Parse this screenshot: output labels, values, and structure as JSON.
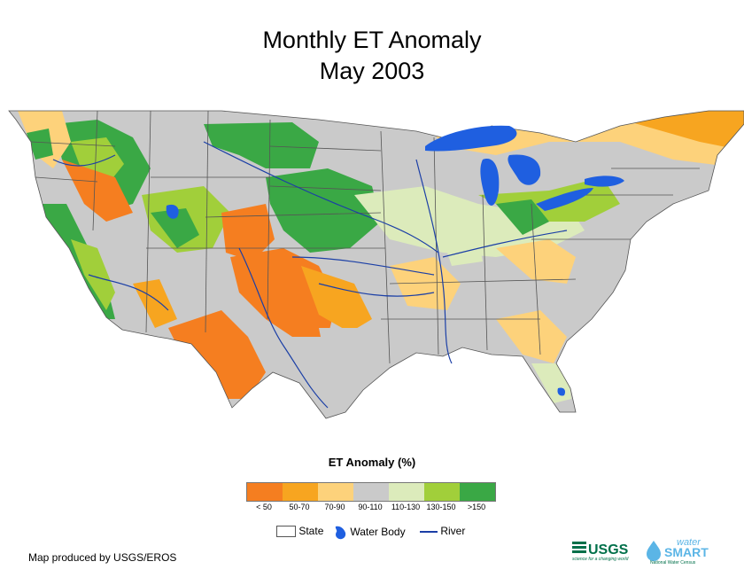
{
  "title": "Monthly ET Anomaly",
  "subtitle": "May 2003",
  "legend": {
    "title": "ET Anomaly (%)",
    "classes": [
      {
        "label": "< 50",
        "color": "#f57e20"
      },
      {
        "label": "50-70",
        "color": "#f7a520"
      },
      {
        "label": "70-90",
        "color": "#fdd27b"
      },
      {
        "label": "90-110",
        "color": "#cacaca"
      },
      {
        "label": "110-130",
        "color": "#dcebbb"
      },
      {
        "label": "130-150",
        "color": "#a1cf3a"
      },
      {
        "label": ">150",
        "color": "#3aa845"
      }
    ],
    "key": {
      "state": "State",
      "water_body": "Water Body",
      "river": "River"
    }
  },
  "colors": {
    "water": "#1f5fe0",
    "river": "#1b3fa6",
    "state_line": "#555555"
  },
  "credit": "Map produced by USGS/EROS",
  "logos": {
    "usgs": "USGS",
    "usgs_tagline": "science for a changing world",
    "water": "water",
    "smart": "SMART",
    "smart_tagline": "National Water Census"
  }
}
